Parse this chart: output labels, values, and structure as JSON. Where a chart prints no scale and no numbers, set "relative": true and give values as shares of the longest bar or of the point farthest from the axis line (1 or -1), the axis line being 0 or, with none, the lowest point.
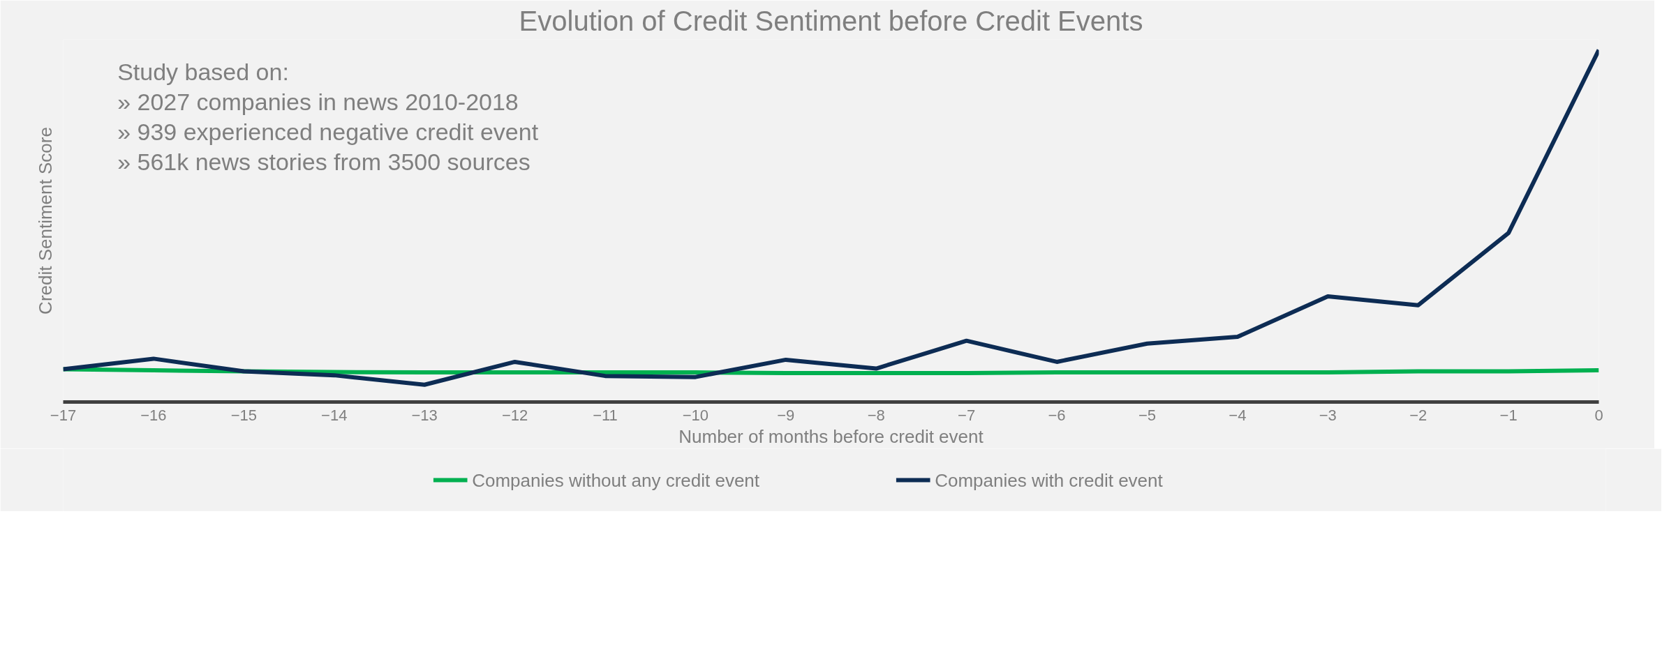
{
  "chart_data": {
    "type": "line",
    "title": "Evolution of Credit Sentiment before Credit Events",
    "xlabel": "Number of months before credit event",
    "ylabel": "Credit Sentiment Score",
    "relative": true,
    "x": [
      -17,
      -16,
      -15,
      -14,
      -13,
      -12,
      -11,
      -10,
      -9,
      -8,
      -7,
      -6,
      -5,
      -4,
      -3,
      -2,
      -1,
      0
    ],
    "xlim": [
      -17,
      0
    ],
    "xticks": [
      -17,
      -16,
      -15,
      -14,
      -13,
      -12,
      -11,
      -10,
      -9,
      -8,
      -7,
      -6,
      -5,
      -4,
      -3,
      -2,
      -1,
      0
    ],
    "series": [
      {
        "name": "Companies without any credit event",
        "color": "#00b050",
        "values": [
          0.093,
          0.09,
          0.087,
          0.085,
          0.084,
          0.084,
          0.084,
          0.084,
          0.082,
          0.082,
          0.082,
          0.084,
          0.084,
          0.084,
          0.084,
          0.087,
          0.087,
          0.09
        ]
      },
      {
        "name": "Companies with credit event",
        "color": "#0d2c54",
        "values": [
          0.093,
          0.123,
          0.087,
          0.076,
          0.049,
          0.114,
          0.074,
          0.071,
          0.12,
          0.095,
          0.174,
          0.114,
          0.166,
          0.185,
          0.3,
          0.275,
          0.48,
          1.0
        ]
      }
    ],
    "annotations": [
      "Study based on:",
      "» 2027 companies in news 2010-2018",
      "» 939 experienced negative credit event",
      "» 561k news stories from 3500 sources"
    ],
    "grid": false,
    "legend": "bottom",
    "marker": "none",
    "line_style": "solid"
  }
}
